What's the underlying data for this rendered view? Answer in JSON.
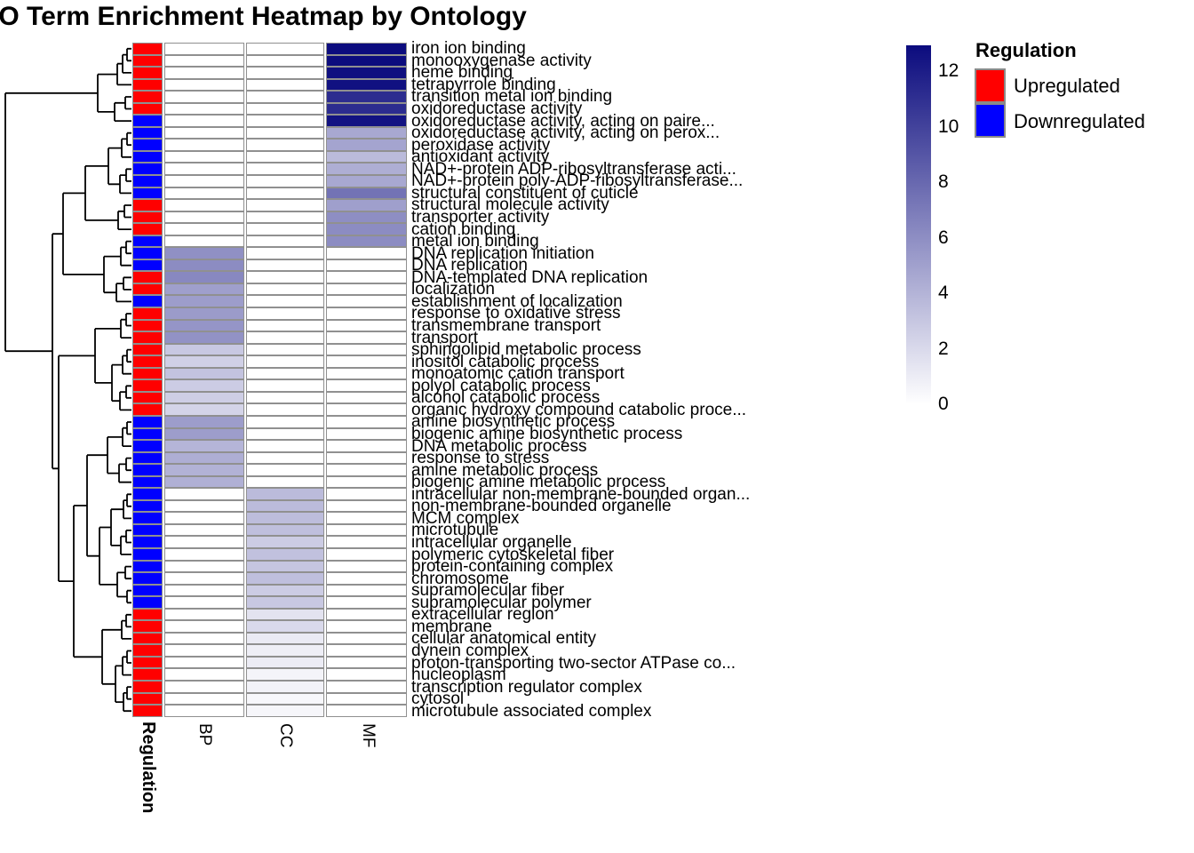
{
  "chart_data": {
    "type": "heatmap",
    "title": "GO Term Enrichment Heatmap by Ontology",
    "columns": [
      "BP",
      "CC",
      "MF"
    ],
    "annotation_label": "Regulation",
    "value_range": [
      0,
      12.93
    ],
    "colorbar_ticks": [
      12,
      10,
      8,
      6,
      4,
      2,
      0
    ],
    "colors": {
      "scale_high": "#0b0b7e",
      "scale_low": "#ffffff",
      "upregulated": "#ff0000",
      "downregulated": "#0000ff",
      "grid": "#909090"
    },
    "legend": {
      "title": "Regulation",
      "items": [
        {
          "label": "Upregulated",
          "color": "#ff0000"
        },
        {
          "label": "Downregulated",
          "color": "#0000ff"
        }
      ]
    },
    "rows": [
      {
        "term": "iron ion binding",
        "ontology": "MF",
        "regulation": "Upregulated",
        "value": 12.9
      },
      {
        "term": "monooxygenase activity",
        "ontology": "MF",
        "regulation": "Upregulated",
        "value": 12.9
      },
      {
        "term": "heme binding",
        "ontology": "MF",
        "regulation": "Upregulated",
        "value": 12.7
      },
      {
        "term": "tetrapyrrole binding",
        "ontology": "MF",
        "regulation": "Upregulated",
        "value": 12.6
      },
      {
        "term": "transition metal ion binding",
        "ontology": "MF",
        "regulation": "Upregulated",
        "value": 11.2
      },
      {
        "term": "oxidoreductase activity",
        "ontology": "MF",
        "regulation": "Upregulated",
        "value": 11.2
      },
      {
        "term": "oxidoreductase activity, acting on paire...",
        "ontology": "MF",
        "regulation": "Downregulated",
        "value": 12.5
      },
      {
        "term": "oxidoreductase activity, acting on perox...",
        "ontology": "MF",
        "regulation": "Downregulated",
        "value": 4.6
      },
      {
        "term": "peroxidase activity",
        "ontology": "MF",
        "regulation": "Downregulated",
        "value": 4.8
      },
      {
        "term": "antioxidant activity",
        "ontology": "MF",
        "regulation": "Downregulated",
        "value": 3.6
      },
      {
        "term": "NAD+-protein ADP-ribosyltransferase acti...",
        "ontology": "MF",
        "regulation": "Downregulated",
        "value": 4.3
      },
      {
        "term": "NAD+-protein poly-ADP-ribosyltransferase...",
        "ontology": "MF",
        "regulation": "Downregulated",
        "value": 4.6
      },
      {
        "term": "structural constituent of cuticle",
        "ontology": "MF",
        "regulation": "Downregulated",
        "value": 7.4
      },
      {
        "term": "structural molecule activity",
        "ontology": "MF",
        "regulation": "Upregulated",
        "value": 5.1
      },
      {
        "term": "transporter activity",
        "ontology": "MF",
        "regulation": "Upregulated",
        "value": 6.0
      },
      {
        "term": "cation binding",
        "ontology": "MF",
        "regulation": "Upregulated",
        "value": 6.1
      },
      {
        "term": "metal ion binding",
        "ontology": "MF",
        "regulation": "Downregulated",
        "value": 6.1
      },
      {
        "term": "DNA replication initiation",
        "ontology": "BP",
        "regulation": "Downregulated",
        "value": 5.9
      },
      {
        "term": "DNA replication",
        "ontology": "BP",
        "regulation": "Downregulated",
        "value": 6.1
      },
      {
        "term": "DNA-templated DNA replication",
        "ontology": "BP",
        "regulation": "Upregulated",
        "value": 6.3
      },
      {
        "term": "localization",
        "ontology": "BP",
        "regulation": "Upregulated",
        "value": 5.1
      },
      {
        "term": "establishment of localization",
        "ontology": "BP",
        "regulation": "Downregulated",
        "value": 5.2
      },
      {
        "term": "response to oxidative stress",
        "ontology": "BP",
        "regulation": "Upregulated",
        "value": 5.3
      },
      {
        "term": "transmembrane transport",
        "ontology": "BP",
        "regulation": "Upregulated",
        "value": 5.6
      },
      {
        "term": "transport",
        "ontology": "BP",
        "regulation": "Upregulated",
        "value": 5.8
      },
      {
        "term": "sphingolipid metabolic process",
        "ontology": "BP",
        "regulation": "Upregulated",
        "value": 2.9
      },
      {
        "term": "inositol catabolic process",
        "ontology": "BP",
        "regulation": "Upregulated",
        "value": 2.5
      },
      {
        "term": "monoatomic cation transport",
        "ontology": "BP",
        "regulation": "Upregulated",
        "value": 3.2
      },
      {
        "term": "polyol catabolic process",
        "ontology": "BP",
        "regulation": "Upregulated",
        "value": 2.7
      },
      {
        "term": "alcohol catabolic process",
        "ontology": "BP",
        "regulation": "Upregulated",
        "value": 2.6
      },
      {
        "term": "organic hydroxy compound catabolic proce...",
        "ontology": "BP",
        "regulation": "Upregulated",
        "value": 2.3
      },
      {
        "term": "amine biosynthetic process",
        "ontology": "BP",
        "regulation": "Downregulated",
        "value": 5.2
      },
      {
        "term": "biogenic amine biosynthetic process",
        "ontology": "BP",
        "regulation": "Downregulated",
        "value": 5.2
      },
      {
        "term": "DNA metabolic process",
        "ontology": "BP",
        "regulation": "Downregulated",
        "value": 3.9
      },
      {
        "term": "response to stress",
        "ontology": "BP",
        "regulation": "Downregulated",
        "value": 4.3
      },
      {
        "term": "amine metabolic process",
        "ontology": "BP",
        "regulation": "Downregulated",
        "value": 4.1
      },
      {
        "term": "biogenic amine metabolic process",
        "ontology": "BP",
        "regulation": "Downregulated",
        "value": 4.2
      },
      {
        "term": "intracellular non-membrane-bounded organ...",
        "ontology": "CC",
        "regulation": "Downregulated",
        "value": 3.6
      },
      {
        "term": "non-membrane-bounded organelle",
        "ontology": "CC",
        "regulation": "Downregulated",
        "value": 3.6
      },
      {
        "term": "MCM complex",
        "ontology": "CC",
        "regulation": "Downregulated",
        "value": 3.5
      },
      {
        "term": "microtubule",
        "ontology": "CC",
        "regulation": "Downregulated",
        "value": 3.4
      },
      {
        "term": "intracellular organelle",
        "ontology": "CC",
        "regulation": "Downregulated",
        "value": 2.7
      },
      {
        "term": "polymeric cytoskeletal fiber",
        "ontology": "CC",
        "regulation": "Downregulated",
        "value": 3.3
      },
      {
        "term": "protein-containing complex",
        "ontology": "CC",
        "regulation": "Downregulated",
        "value": 3.1
      },
      {
        "term": "chromosome",
        "ontology": "CC",
        "regulation": "Downregulated",
        "value": 3.4
      },
      {
        "term": "supramolecular fiber",
        "ontology": "CC",
        "regulation": "Downregulated",
        "value": 2.7
      },
      {
        "term": "supramolecular polymer",
        "ontology": "CC",
        "regulation": "Downregulated",
        "value": 2.9
      },
      {
        "term": "extracellular region",
        "ontology": "CC",
        "regulation": "Upregulated",
        "value": 1.5
      },
      {
        "term": "membrane",
        "ontology": "CC",
        "regulation": "Upregulated",
        "value": 2.0
      },
      {
        "term": "cellular anatomical entity",
        "ontology": "CC",
        "regulation": "Upregulated",
        "value": 1.1
      },
      {
        "term": "dynein complex",
        "ontology": "CC",
        "regulation": "Upregulated",
        "value": 0.9
      },
      {
        "term": "proton-transporting two-sector ATPase co...",
        "ontology": "CC",
        "regulation": "Upregulated",
        "value": 1.0
      },
      {
        "term": "nucleoplasm",
        "ontology": "CC",
        "regulation": "Upregulated",
        "value": 0.6
      },
      {
        "term": "transcription regulator complex",
        "ontology": "CC",
        "regulation": "Upregulated",
        "value": 0.7
      },
      {
        "term": "cytosol",
        "ontology": "CC",
        "regulation": "Upregulated",
        "value": 0.4
      },
      {
        "term": "microtubule associated complex",
        "ontology": "CC",
        "regulation": "Upregulated",
        "value": 0.5
      }
    ]
  }
}
